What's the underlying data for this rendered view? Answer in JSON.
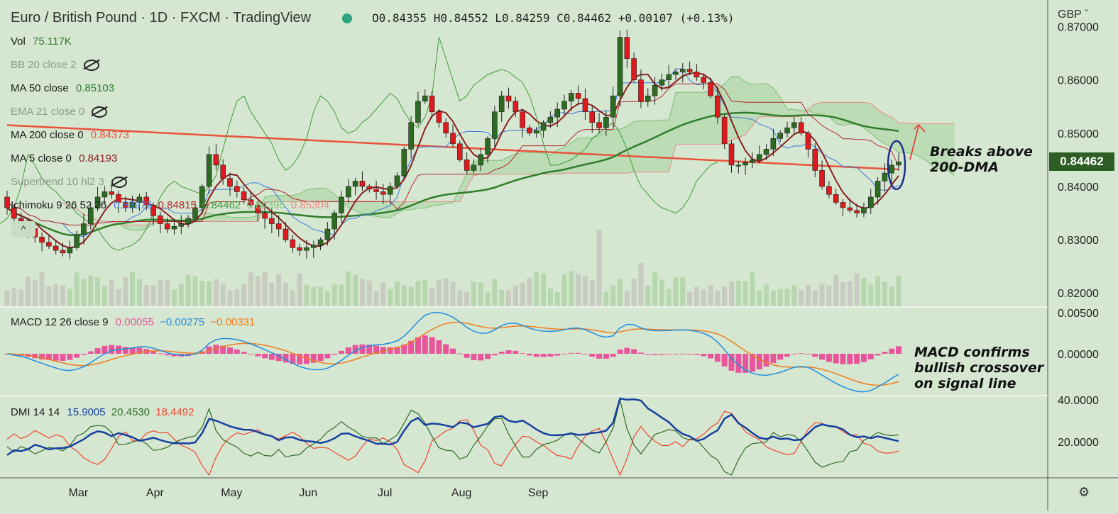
{
  "header": {
    "title": "Euro / British Pound · 1D · FXCM · TradingView",
    "ohlc": "O0.84355 H0.84552 L0.84259 C0.84462 +0.00107 (+0.13%)",
    "currency": "GBP"
  },
  "legend": {
    "vol": {
      "label": "Vol",
      "value": "75.117K"
    },
    "bb": "BB 20 close 2",
    "ma50": {
      "label": "MA 50 close",
      "value": "0.85103"
    },
    "ema21": "EMA 21 close 0",
    "ma200": {
      "label": "MA 200 close 0",
      "value": "0.84373"
    },
    "ma5": {
      "label": "MA 5 close 0",
      "value": "0.84193"
    },
    "supertrend": "Supertrend 10 hl2 3",
    "ichimoku": {
      "label": "Ichimoku 9 26 52 26",
      "v1": "0.83975",
      "v2": "0.84815",
      "v3": "0.84462",
      "v4": "0.84395",
      "v5": "0.85304"
    },
    "macd": {
      "label": "MACD 12 26 close 9",
      "v1": "0.00055",
      "v2": "−0.00275",
      "v3": "−0.00331"
    },
    "dmi": {
      "label": "DMI 14 14",
      "v1": "15.9005",
      "v2": "20.4530",
      "v3": "18.4492"
    }
  },
  "annotations": {
    "break": [
      "Breaks above",
      "200-DMA"
    ],
    "macd": [
      "MACD confirms",
      "bullish crossover",
      "on signal line"
    ]
  },
  "price_tag": "0.84462",
  "chart_data": {
    "type": "candlestick",
    "title": "Euro / British Pound · 1D · FXCM · TradingView",
    "x_ticks": [
      "Mar",
      "Apr",
      "May",
      "Jun",
      "Jul",
      "Aug",
      "Sep"
    ],
    "price_axis": {
      "ticks": [
        "0.87000",
        "0.86000",
        "0.85000",
        "0.84000",
        "0.83000",
        "0.82000"
      ],
      "ylim": [
        0.8175,
        0.871
      ]
    },
    "macd_axis": {
      "ticks": [
        "0.00500",
        "0.00000"
      ]
    },
    "dmi_axis": {
      "ticks": [
        "40.0000",
        "20.0000"
      ]
    },
    "colors": {
      "up": "#2e6b22",
      "down": "#e0191e",
      "ma200": "#e8533a",
      "ma50": "#2f7d2a",
      "ma5": "#8b1e1e",
      "tenkan": "#3a78e0",
      "kijun": "#b4282b",
      "chikou": "#3d9a37",
      "macd": "#1e8de0",
      "signal": "#f07c1c",
      "hist": "#e8559a",
      "adx": "#1640a0",
      "diplus": "#2f6b28",
      "diminus": "#f0452e"
    },
    "candles": {
      "open": [
        0.838,
        0.836,
        0.834,
        0.8335,
        0.8321,
        0.8305,
        0.8295,
        0.8288,
        0.828,
        0.8275,
        0.8285,
        0.831,
        0.833,
        0.836,
        0.838,
        0.839,
        0.8385,
        0.837,
        0.836,
        0.837,
        0.838,
        0.8365,
        0.8345,
        0.833,
        0.832,
        0.8325,
        0.833,
        0.834,
        0.836,
        0.84,
        0.846,
        0.844,
        0.8415,
        0.84,
        0.839,
        0.8375,
        0.8365,
        0.835,
        0.834,
        0.833,
        0.832,
        0.83,
        0.8285,
        0.828,
        0.8285,
        0.829,
        0.83,
        0.832,
        0.835,
        0.838,
        0.84,
        0.841,
        0.84,
        0.8395,
        0.839,
        0.8385,
        0.84,
        0.842,
        0.847,
        0.852,
        0.856,
        0.857,
        0.854,
        0.852,
        0.85,
        0.848,
        0.845,
        0.843,
        0.844,
        0.846,
        0.849,
        0.854,
        0.857,
        0.856,
        0.854,
        0.851,
        0.85,
        0.8505,
        0.852,
        0.853,
        0.8545,
        0.856,
        0.8575,
        0.8565,
        0.854,
        0.852,
        0.851,
        0.853,
        0.857,
        0.868,
        0.864,
        0.86,
        0.856,
        0.857,
        0.859,
        0.86,
        0.861,
        0.8615,
        0.862,
        0.8615,
        0.8605,
        0.8595,
        0.857,
        0.853,
        0.848,
        0.844,
        0.844,
        0.8445,
        0.845,
        0.846,
        0.847,
        0.849,
        0.85,
        0.851,
        0.852,
        0.85,
        0.847,
        0.843,
        0.84,
        0.8385,
        0.837,
        0.836,
        0.8355,
        0.835,
        0.836,
        0.838,
        0.841,
        0.8425,
        0.844
      ],
      "close": [
        0.836,
        0.834,
        0.8335,
        0.8321,
        0.8305,
        0.8295,
        0.8288,
        0.828,
        0.8275,
        0.8285,
        0.831,
        0.833,
        0.836,
        0.838,
        0.839,
        0.8385,
        0.837,
        0.836,
        0.837,
        0.838,
        0.8365,
        0.8345,
        0.833,
        0.832,
        0.8325,
        0.833,
        0.834,
        0.836,
        0.84,
        0.846,
        0.844,
        0.8415,
        0.84,
        0.839,
        0.8375,
        0.8365,
        0.835,
        0.834,
        0.833,
        0.832,
        0.83,
        0.8285,
        0.828,
        0.8285,
        0.829,
        0.83,
        0.832,
        0.835,
        0.838,
        0.84,
        0.841,
        0.84,
        0.8395,
        0.839,
        0.8385,
        0.84,
        0.842,
        0.847,
        0.852,
        0.856,
        0.857,
        0.854,
        0.852,
        0.85,
        0.848,
        0.845,
        0.843,
        0.844,
        0.846,
        0.849,
        0.854,
        0.857,
        0.856,
        0.854,
        0.851,
        0.85,
        0.8505,
        0.852,
        0.853,
        0.8545,
        0.856,
        0.8575,
        0.8565,
        0.854,
        0.852,
        0.851,
        0.853,
        0.857,
        0.868,
        0.864,
        0.86,
        0.856,
        0.857,
        0.859,
        0.86,
        0.861,
        0.8615,
        0.862,
        0.8615,
        0.8605,
        0.8595,
        0.857,
        0.853,
        0.848,
        0.844,
        0.844,
        0.8445,
        0.845,
        0.846,
        0.847,
        0.849,
        0.85,
        0.851,
        0.852,
        0.85,
        0.847,
        0.843,
        0.84,
        0.8385,
        0.837,
        0.836,
        0.8355,
        0.835,
        0.836,
        0.838,
        0.841,
        0.8425,
        0.844,
        0.8446
      ]
    }
  }
}
